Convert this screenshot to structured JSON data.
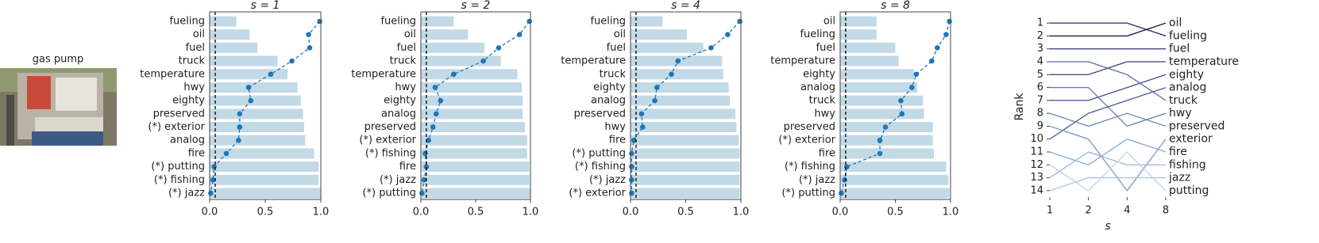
{
  "image": {
    "caption": "gas pump"
  },
  "chart_data": [
    {
      "type": "bar",
      "orientation": "horizontal",
      "title": "s = 1",
      "categories": [
        "fueling",
        "oil",
        "fuel",
        "truck",
        "temperature",
        "hwy",
        "eighty",
        "preserved",
        "(*) exterior",
        "analog",
        "fire",
        "(*) putting",
        "(*) fishing",
        "(*) jazz"
      ],
      "series": [
        {
          "type": "bar",
          "color": "#c2d9e6",
          "values": [
            0.24,
            0.36,
            0.43,
            0.61,
            0.7,
            0.79,
            0.82,
            0.84,
            0.85,
            0.86,
            0.94,
            0.98,
            0.98,
            1.0
          ]
        },
        {
          "type": "line",
          "color": "#1f77b4",
          "linestyle": "dashed",
          "values": [
            0.99,
            0.89,
            0.9,
            0.74,
            0.55,
            0.35,
            0.37,
            0.27,
            0.27,
            0.26,
            0.15,
            0.04,
            0.03,
            0.01
          ]
        }
      ],
      "vline": 0.05,
      "xlim": [
        0,
        1
      ],
      "xticks": [
        {
          "value": 0,
          "label": "0.0"
        },
        0.5,
        {
          "value": 1,
          "label": "1.0"
        }
      ]
    },
    {
      "type": "bar",
      "orientation": "horizontal",
      "title": "s = 2",
      "categories": [
        "fueling",
        "oil",
        "fuel",
        "truck",
        "temperature",
        "hwy",
        "eighty",
        "analog",
        "preserved",
        "(*) exterior",
        "(*) fishing",
        "fire",
        "(*) jazz",
        "(*) putting"
      ],
      "series": [
        {
          "type": "bar",
          "color": "#c2d9e6",
          "values": [
            0.3,
            0.43,
            0.58,
            0.73,
            0.88,
            0.92,
            0.93,
            0.93,
            0.95,
            0.97,
            0.97,
            0.99,
            0.99,
            1.0
          ]
        },
        {
          "type": "line",
          "color": "#1f77b4",
          "linestyle": "dashed",
          "values": [
            0.99,
            0.9,
            0.71,
            0.57,
            0.3,
            0.13,
            0.18,
            0.14,
            0.11,
            0.07,
            0.04,
            0.05,
            0.03,
            0.01
          ]
        }
      ],
      "vline": 0.05,
      "xlim": [
        0,
        1
      ],
      "xticks": [
        {
          "value": 0,
          "label": "0.0"
        },
        0.5,
        {
          "value": 1,
          "label": "1.0"
        }
      ]
    },
    {
      "type": "bar",
      "orientation": "horizontal",
      "title": "s = 4",
      "categories": [
        "fueling",
        "oil",
        "fuel",
        "temperature",
        "truck",
        "eighty",
        "analog",
        "preserved",
        "hwy",
        "fire",
        "(*) putting",
        "(*) fishing",
        "(*) jazz",
        "(*) exterior"
      ],
      "series": [
        {
          "type": "bar",
          "color": "#c2d9e6",
          "values": [
            0.29,
            0.51,
            0.66,
            0.83,
            0.84,
            0.89,
            0.9,
            0.95,
            0.96,
            0.98,
            0.99,
            0.99,
            0.99,
            0.99
          ]
        },
        {
          "type": "line",
          "color": "#1f77b4",
          "linestyle": "dashed",
          "values": [
            0.99,
            0.88,
            0.73,
            0.43,
            0.37,
            0.24,
            0.22,
            0.1,
            0.11,
            0.03,
            0.01,
            0.01,
            0.01,
            0.01
          ]
        }
      ],
      "vline": 0.05,
      "xlim": [
        0,
        1
      ],
      "xticks": [
        {
          "value": 0,
          "label": "0.0"
        },
        0.5,
        {
          "value": 1,
          "label": "1.0"
        }
      ]
    },
    {
      "type": "bar",
      "orientation": "horizontal",
      "title": "s = 8",
      "categories": [
        "oil",
        "fueling",
        "fuel",
        "temperature",
        "eighty",
        "analog",
        "truck",
        "hwy",
        "preserved",
        "(*) exterior",
        "fire",
        "(*) fishing",
        "(*) jazz",
        "(*) putting"
      ],
      "series": [
        {
          "type": "bar",
          "color": "#c2d9e6",
          "values": [
            0.33,
            0.33,
            0.5,
            0.53,
            0.67,
            0.7,
            0.75,
            0.76,
            0.84,
            0.84,
            0.85,
            0.96,
            0.98,
            0.99
          ]
        },
        {
          "type": "line",
          "color": "#1f77b4",
          "linestyle": "dashed",
          "values": [
            0.99,
            0.96,
            0.88,
            0.83,
            0.69,
            0.65,
            0.55,
            0.56,
            0.41,
            0.36,
            0.36,
            0.06,
            0.04,
            0.01
          ]
        }
      ],
      "vline": 0.05,
      "xlim": [
        0,
        1
      ],
      "xticks": [
        {
          "value": 0,
          "label": "0.0"
        },
        0.5,
        {
          "value": 1,
          "label": "1.0"
        }
      ]
    },
    {
      "type": "line",
      "xlabel": "s",
      "ylabel": "Rank",
      "xscale": "log",
      "x": [
        1,
        2,
        4,
        8
      ],
      "xlim": [
        1,
        8
      ],
      "xticks": [
        1,
        2,
        4,
        8
      ],
      "ylim": [
        14.5,
        0.5
      ],
      "yticks": [
        1,
        2,
        3,
        4,
        5,
        6,
        7,
        8,
        9,
        10,
        11,
        12,
        13,
        14
      ],
      "series": [
        {
          "name": "oil",
          "color": "#1f1d44",
          "values": [
            2,
            2,
            2,
            1
          ]
        },
        {
          "name": "fueling",
          "color": "#27285a",
          "values": [
            1,
            1,
            1,
            2
          ]
        },
        {
          "name": "fuel",
          "color": "#2f3570",
          "values": [
            3,
            3,
            3,
            3
          ]
        },
        {
          "name": "temperature",
          "color": "#393f82",
          "values": [
            5,
            5,
            4,
            4
          ]
        },
        {
          "name": "eighty",
          "color": "#434c8f",
          "values": [
            7,
            7,
            6,
            5
          ]
        },
        {
          "name": "analog",
          "color": "#4d5a9c",
          "values": [
            10,
            8,
            7,
            6
          ]
        },
        {
          "name": "truck",
          "color": "#5768a8",
          "values": [
            4,
            4,
            5,
            7
          ]
        },
        {
          "name": "hwy",
          "color": "#6279b3",
          "values": [
            6,
            6,
            9,
            8
          ]
        },
        {
          "name": "preserved",
          "color": "#6d88be",
          "values": [
            8,
            9,
            8,
            9
          ]
        },
        {
          "name": "exterior",
          "color": "#7a98c8",
          "values": [
            9,
            10,
            14,
            10
          ]
        },
        {
          "name": "fire",
          "color": "#88a8d2",
          "values": [
            11,
            12,
            10,
            11
          ]
        },
        {
          "name": "fishing",
          "color": "#97b8db",
          "values": [
            13,
            11,
            12,
            12
          ]
        },
        {
          "name": "jazz",
          "color": "#a9c7e4",
          "values": [
            14,
            13,
            13,
            13
          ]
        },
        {
          "name": "putting",
          "color": "#bcd6ec",
          "values": [
            12,
            14,
            11,
            14
          ]
        }
      ]
    }
  ]
}
